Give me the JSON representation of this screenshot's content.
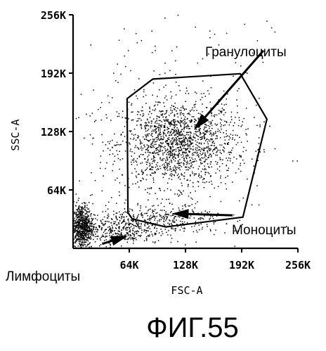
{
  "chart_data": {
    "type": "scatter",
    "xlabel": "FSC-A",
    "ylabel": "SSC-A",
    "xlim": [
      0,
      262144
    ],
    "ylim": [
      0,
      262144
    ],
    "x_ticks": [
      {
        "value": 65536,
        "label": "64K"
      },
      {
        "value": 131072,
        "label": "128K"
      },
      {
        "value": 196608,
        "label": "192K"
      },
      {
        "value": 262144,
        "label": "256K"
      }
    ],
    "y_ticks": [
      {
        "value": 65536,
        "label": "64K"
      },
      {
        "value": 131072,
        "label": "128K"
      },
      {
        "value": 196608,
        "label": "192K"
      },
      {
        "value": 262144,
        "label": "256K"
      }
    ],
    "gate": [
      [
        63000,
        168000
      ],
      [
        93000,
        190000
      ],
      [
        195000,
        196000
      ],
      [
        226000,
        145000
      ],
      [
        198000,
        35000
      ],
      [
        108000,
        24000
      ],
      [
        69000,
        33000
      ],
      [
        64000,
        40000
      ]
    ],
    "populations": [
      {
        "cx": 122000,
        "cy": 118000,
        "sx": 34000,
        "sy": 24000,
        "n": 1500
      },
      {
        "cx": 10000,
        "cy": 24000,
        "sx": 6500,
        "sy": 13000,
        "n": 700
      },
      {
        "cx": 52000,
        "cy": 22000,
        "sx": 26000,
        "sy": 9000,
        "n": 380
      },
      {
        "cx": 110000,
        "cy": 32000,
        "sx": 34000,
        "sy": 9000,
        "n": 300
      },
      {
        "cx": 120000,
        "cy": 130000,
        "sx": 85000,
        "sy": 70000,
        "n": 320
      }
    ],
    "annotations": [
      {
        "text": "Гранулоциты",
        "from": [
          222000,
          222000
        ],
        "to": [
          141000,
          133000
        ]
      },
      {
        "text": "Моноциты",
        "from": [
          186000,
          37000
        ],
        "to": [
          115000,
          39000
        ]
      },
      {
        "text": "Лимфоциты",
        "from": [
          34000,
          5000
        ],
        "to": [
          64000,
          14000
        ]
      }
    ]
  },
  "caption": "ФИГ.55"
}
